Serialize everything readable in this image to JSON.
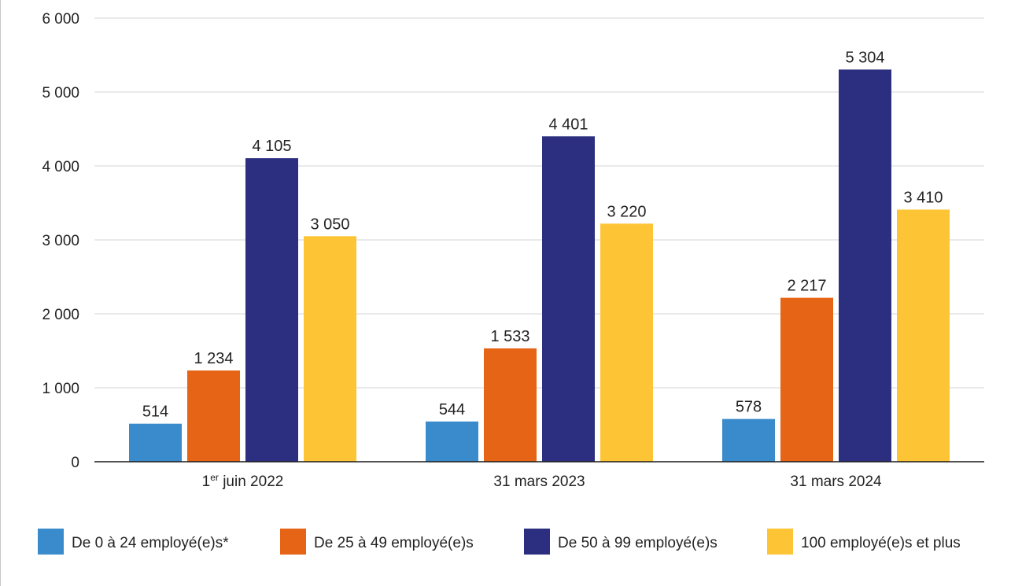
{
  "chart_data": {
    "type": "bar",
    "categories": [
      {
        "main": "1",
        "sup": "er",
        "rest": " juin 2022"
      },
      {
        "main": "31 mars 2023",
        "sup": "",
        "rest": ""
      },
      {
        "main": "31 mars 2024",
        "sup": "",
        "rest": ""
      }
    ],
    "series": [
      {
        "name": "De 0 à 24 employé(e)s*",
        "color": "#3a8bcb",
        "values": [
          514,
          544,
          578
        ],
        "labels": [
          "514",
          "544",
          "578"
        ]
      },
      {
        "name": "De 25 à 49 employé(e)s",
        "color": "#e66415",
        "values": [
          1234,
          1533,
          2217
        ],
        "labels": [
          "1 234",
          "1 533",
          "2 217"
        ]
      },
      {
        "name": "De 50 à 99 employé(e)s",
        "color": "#2c2f7f",
        "values": [
          4105,
          4401,
          5304
        ],
        "labels": [
          "4 105",
          "4 401",
          "5 304"
        ]
      },
      {
        "name": "100 employé(e)s et plus",
        "color": "#fdc436",
        "values": [
          3050,
          3220,
          3410
        ],
        "labels": [
          "3 050",
          "3 220",
          "3 410"
        ]
      }
    ],
    "ylim": [
      0,
      6000
    ],
    "yticks": [
      {
        "value": 0,
        "label": "0"
      },
      {
        "value": 1000,
        "label": "1 000"
      },
      {
        "value": 2000,
        "label": "2 000"
      },
      {
        "value": 3000,
        "label": "3 000"
      },
      {
        "value": 4000,
        "label": "4 000"
      },
      {
        "value": 5000,
        "label": "5 000"
      },
      {
        "value": 6000,
        "label": "6 000"
      }
    ],
    "grid": true,
    "legend_position": "bottom",
    "title": "",
    "xlabel": "",
    "ylabel": ""
  }
}
